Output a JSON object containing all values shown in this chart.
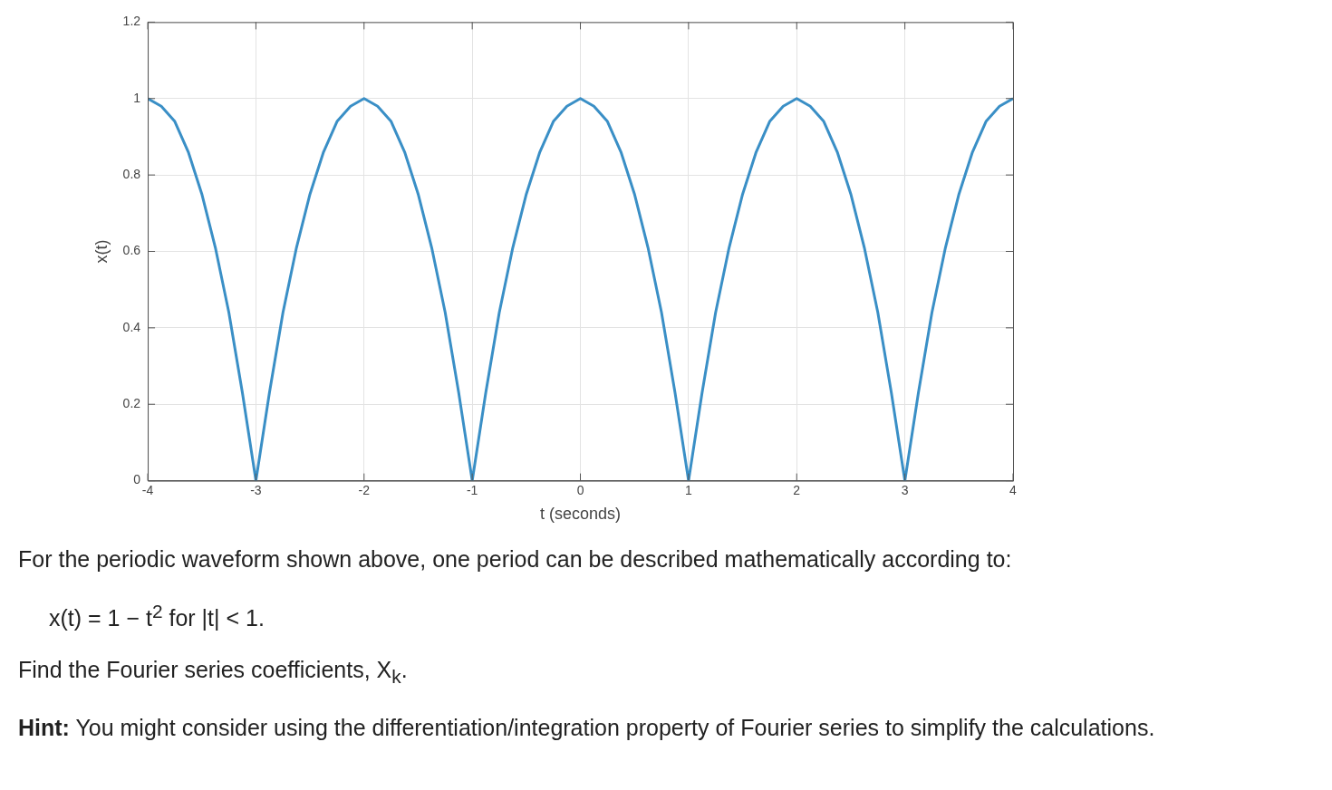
{
  "chart_data": {
    "type": "line",
    "xlabel": "t (seconds)",
    "ylabel": "x(t)",
    "x": [
      -4,
      -3.875,
      -3.75,
      -3.625,
      -3.5,
      -3.375,
      -3.25,
      -3.125,
      -3,
      -2.875,
      -2.75,
      -2.625,
      -2.5,
      -2.375,
      -2.25,
      -2.125,
      -2,
      -1.875,
      -1.75,
      -1.625,
      -1.5,
      -1.375,
      -1.25,
      -1.125,
      -1,
      -0.875,
      -0.75,
      -0.625,
      -0.5,
      -0.375,
      -0.25,
      -0.125,
      0,
      0.125,
      0.25,
      0.375,
      0.5,
      0.625,
      0.75,
      0.875,
      1,
      1.125,
      1.25,
      1.375,
      1.5,
      1.625,
      1.75,
      1.875,
      2,
      2.125,
      2.25,
      2.375,
      2.5,
      2.625,
      2.75,
      2.875,
      3,
      3.125,
      3.25,
      3.375,
      3.5,
      3.625,
      3.75,
      3.875,
      4
    ],
    "series": [
      {
        "color": "#3a8fc6",
        "values": [
          1,
          0.98,
          0.94,
          0.86,
          0.75,
          0.61,
          0.44,
          0.23,
          0,
          0.23,
          0.44,
          0.61,
          0.75,
          0.86,
          0.94,
          0.98,
          1,
          0.98,
          0.94,
          0.86,
          0.75,
          0.61,
          0.44,
          0.23,
          0,
          0.23,
          0.44,
          0.61,
          0.75,
          0.86,
          0.94,
          0.98,
          1,
          0.98,
          0.94,
          0.86,
          0.75,
          0.61,
          0.44,
          0.23,
          0,
          0.23,
          0.44,
          0.61,
          0.75,
          0.86,
          0.94,
          0.98,
          1,
          0.98,
          0.94,
          0.86,
          0.75,
          0.61,
          0.44,
          0.23,
          0,
          0.23,
          0.44,
          0.61,
          0.75,
          0.86,
          0.94,
          0.98,
          1
        ]
      }
    ],
    "xlim": [
      -4,
      4
    ],
    "xticks": [
      -4,
      -3,
      -2,
      -1,
      0,
      1,
      2,
      3,
      4
    ],
    "ylim": [
      0,
      1.2
    ],
    "yticks": [
      0,
      0.2,
      0.4,
      0.6,
      0.8,
      1,
      1.2
    ],
    "grid": true,
    "legend": false,
    "marker": "none",
    "line_style": "solid",
    "annotations": [
      "For the periodic waveform shown above, one period can be described mathematically according to:",
      "x(t) = 1 − t$^{2}$ for |t| < 1.",
      "Find the Fourier series coefficients, X$_{k}$.",
      "Hint: You might consider using the differentiation/integration property of Fourier series to simplify the calculations."
    ]
  }
}
